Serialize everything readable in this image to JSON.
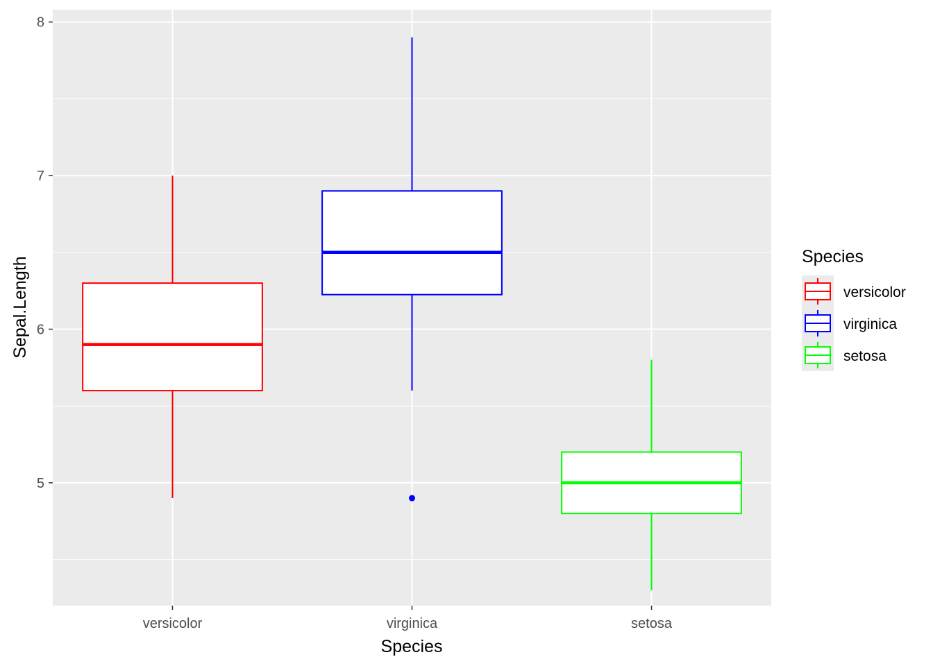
{
  "chart_data": {
    "type": "boxplot",
    "xlabel": "Species",
    "ylabel": "Sepal.Length",
    "ylim": [
      4.2,
      8.08
    ],
    "y_ticks": [
      5,
      6,
      7,
      8
    ],
    "y_tick_labels": [
      "5",
      "6",
      "7",
      "8"
    ],
    "grid": true,
    "legend": {
      "title": "Species",
      "position": "right"
    },
    "categories": [
      "versicolor",
      "virginica",
      "setosa"
    ],
    "series": [
      {
        "name": "versicolor",
        "color": "#ff0000",
        "whisker_low": 4.9,
        "q1": 5.6,
        "median": 5.9,
        "q3": 6.3,
        "whisker_high": 7.0,
        "outliers": []
      },
      {
        "name": "virginica",
        "color": "#0000ff",
        "whisker_low": 5.6,
        "q1": 6.225,
        "median": 6.5,
        "q3": 6.9,
        "whisker_high": 7.9,
        "outliers": [
          4.9
        ]
      },
      {
        "name": "setosa",
        "color": "#00ff00",
        "whisker_low": 4.3,
        "q1": 4.8,
        "median": 5.0,
        "q3": 5.2,
        "whisker_high": 5.8,
        "outliers": []
      }
    ]
  }
}
